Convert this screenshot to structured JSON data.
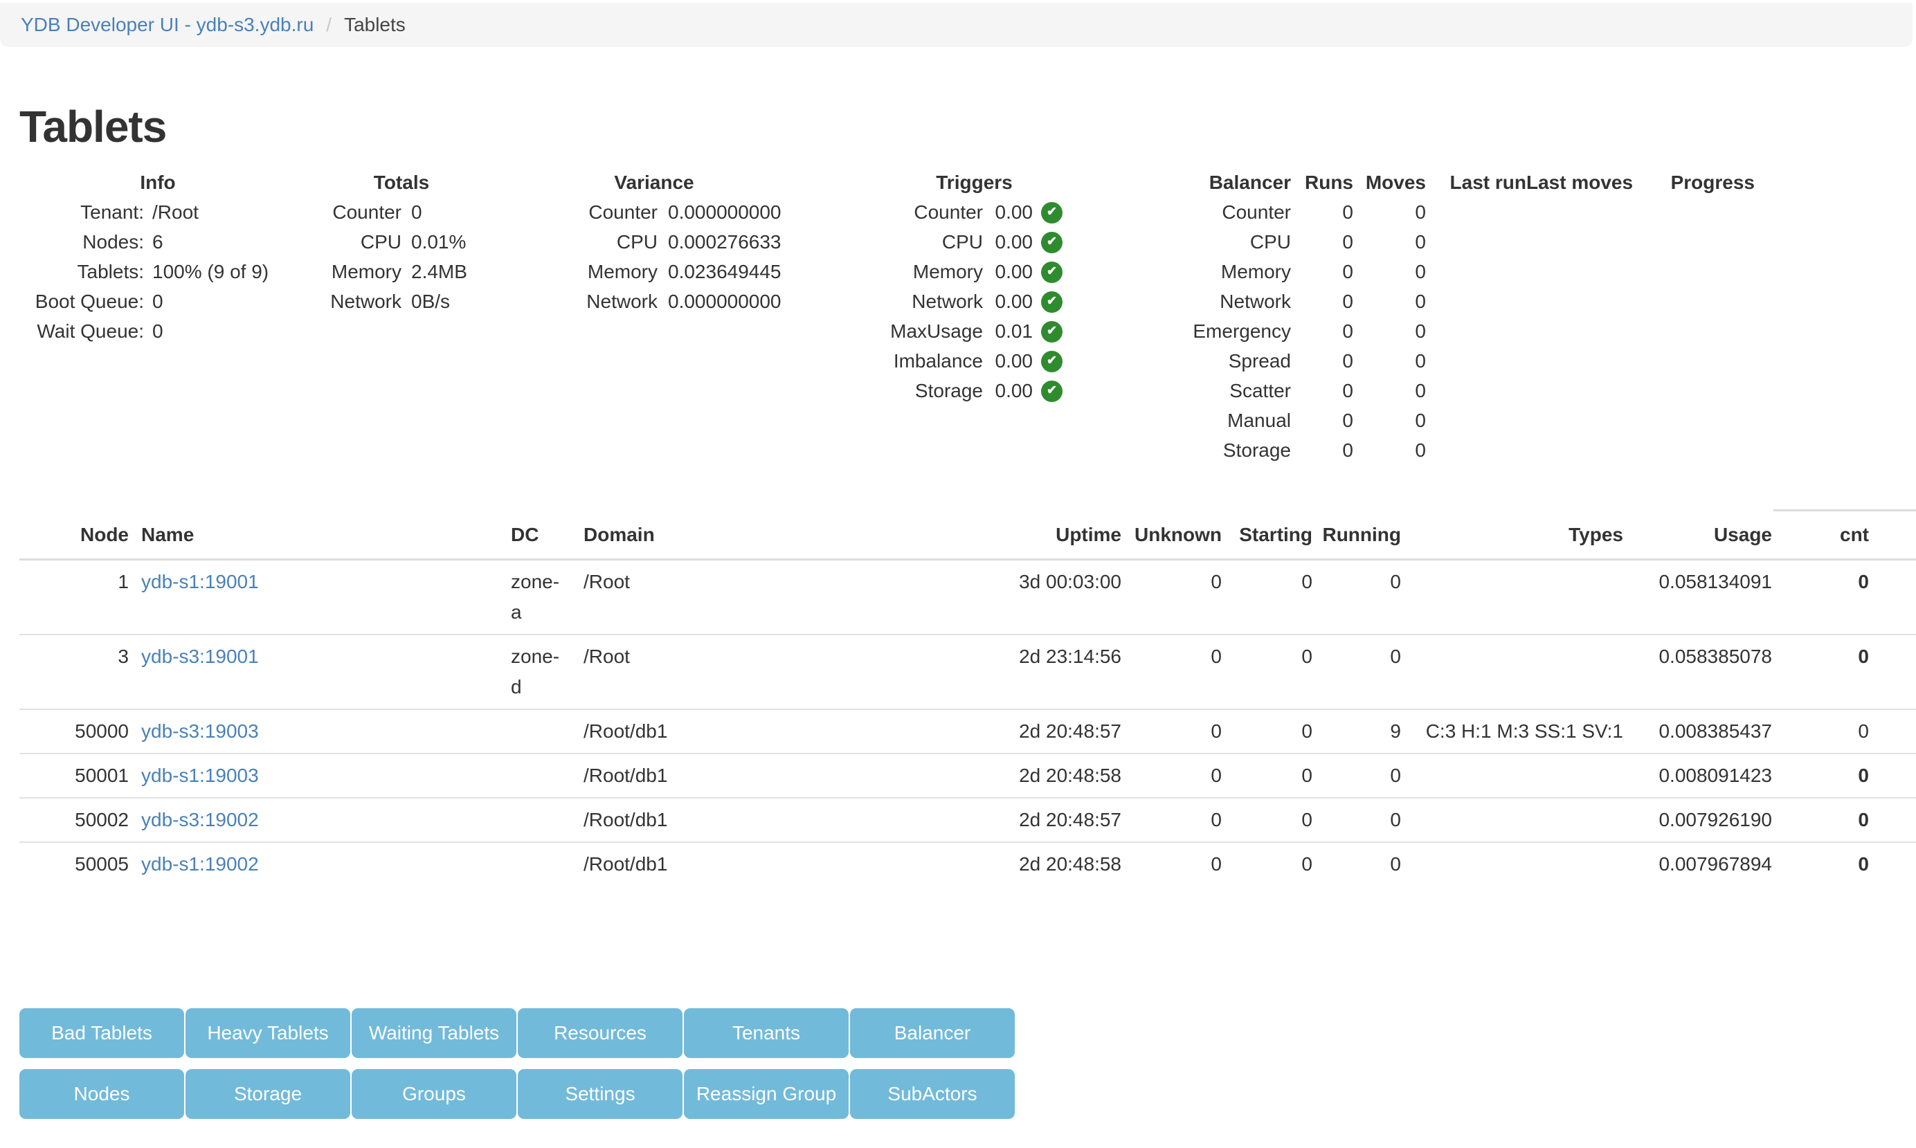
{
  "breadcrumb": {
    "root": "YDB Developer UI - ydb-s3.ydb.ru",
    "separator": "/",
    "current": "Tablets"
  },
  "page": {
    "title": "Tablets"
  },
  "summary": {
    "info": {
      "title": "Info",
      "rows": [
        {
          "label": "Tenant:",
          "value": "/Root"
        },
        {
          "label": "Nodes:",
          "value": "6"
        },
        {
          "label": "Tablets:",
          "value": "100% (9 of 9)"
        },
        {
          "label": "Boot Queue:",
          "value": "0"
        },
        {
          "label": "Wait Queue:",
          "value": "0"
        }
      ]
    },
    "totals": {
      "title": "Totals",
      "rows": [
        {
          "label": "Counter",
          "value": "0"
        },
        {
          "label": "CPU",
          "value": "0.01%"
        },
        {
          "label": "Memory",
          "value": "2.4MB"
        },
        {
          "label": "Network",
          "value": "0B/s"
        }
      ]
    },
    "variance": {
      "title": "Variance",
      "rows": [
        {
          "label": "Counter",
          "value": "0.000000000"
        },
        {
          "label": "CPU",
          "value": "0.000276633"
        },
        {
          "label": "Memory",
          "value": "0.023649445"
        },
        {
          "label": "Network",
          "value": "0.000000000"
        }
      ]
    },
    "triggers": {
      "title": "Triggers",
      "rows": [
        {
          "label": "Counter",
          "value": "0.00",
          "status": "ok"
        },
        {
          "label": "CPU",
          "value": "0.00",
          "status": "ok"
        },
        {
          "label": "Memory",
          "value": "0.00",
          "status": "ok"
        },
        {
          "label": "Network",
          "value": "0.00",
          "status": "ok"
        },
        {
          "label": "MaxUsage",
          "value": "0.01",
          "status": "ok"
        },
        {
          "label": "Imbalance",
          "value": "0.00",
          "status": "ok"
        },
        {
          "label": "Storage",
          "value": "0.00",
          "status": "ok"
        }
      ]
    },
    "balancer": {
      "headers": [
        "Balancer",
        "Runs",
        "Moves",
        "Last run",
        "Last moves",
        "Progress"
      ],
      "rows": [
        {
          "name": "Counter",
          "runs": "0",
          "moves": "0",
          "last_run": "",
          "last_moves": "",
          "progress": ""
        },
        {
          "name": "CPU",
          "runs": "0",
          "moves": "0",
          "last_run": "",
          "last_moves": "",
          "progress": ""
        },
        {
          "name": "Memory",
          "runs": "0",
          "moves": "0",
          "last_run": "",
          "last_moves": "",
          "progress": ""
        },
        {
          "name": "Network",
          "runs": "0",
          "moves": "0",
          "last_run": "",
          "last_moves": "",
          "progress": ""
        },
        {
          "name": "Emergency",
          "runs": "0",
          "moves": "0",
          "last_run": "",
          "last_moves": "",
          "progress": ""
        },
        {
          "name": "Spread",
          "runs": "0",
          "moves": "0",
          "last_run": "",
          "last_moves": "",
          "progress": ""
        },
        {
          "name": "Scatter",
          "runs": "0",
          "moves": "0",
          "last_run": "",
          "last_moves": "",
          "progress": ""
        },
        {
          "name": "Manual",
          "runs": "0",
          "moves": "0",
          "last_run": "",
          "last_moves": "",
          "progress": ""
        },
        {
          "name": "Storage",
          "runs": "0",
          "moves": "0",
          "last_run": "",
          "last_moves": "",
          "progress": ""
        }
      ]
    }
  },
  "table": {
    "headers": {
      "node": "Node",
      "name": "Name",
      "dc": "DC",
      "domain": "Domain",
      "uptime": "Uptime",
      "unknown": "Unknown",
      "starting": "Starting",
      "running": "Running",
      "types": "Types",
      "usage": "Usage",
      "cnt": "cnt"
    },
    "rows": [
      {
        "node": "1",
        "name": "ydb-s1:19001",
        "dc": "zone-a",
        "domain": "/Root",
        "uptime": "3d 00:03:00",
        "unknown": "0",
        "starting": "0",
        "running": "0",
        "types": "",
        "usage": "0.058134091",
        "cnt": "0",
        "cnt_bold": true
      },
      {
        "node": "3",
        "name": "ydb-s3:19001",
        "dc": "zone-d",
        "domain": "/Root",
        "uptime": "2d 23:14:56",
        "unknown": "0",
        "starting": "0",
        "running": "0",
        "types": "",
        "usage": "0.058385078",
        "cnt": "0",
        "cnt_bold": true
      },
      {
        "node": "50000",
        "name": "ydb-s3:19003",
        "dc": "",
        "domain": "/Root/db1",
        "uptime": "2d 20:48:57",
        "unknown": "0",
        "starting": "0",
        "running": "9",
        "types": "C:3 H:1 M:3 SS:1 SV:1",
        "usage": "0.008385437",
        "cnt": "0",
        "cnt_bold": false
      },
      {
        "node": "50001",
        "name": "ydb-s1:19003",
        "dc": "",
        "domain": "/Root/db1",
        "uptime": "2d 20:48:58",
        "unknown": "0",
        "starting": "0",
        "running": "0",
        "types": "",
        "usage": "0.008091423",
        "cnt": "0",
        "cnt_bold": true
      },
      {
        "node": "50002",
        "name": "ydb-s3:19002",
        "dc": "",
        "domain": "/Root/db1",
        "uptime": "2d 20:48:57",
        "unknown": "0",
        "starting": "0",
        "running": "0",
        "types": "",
        "usage": "0.007926190",
        "cnt": "0",
        "cnt_bold": true
      },
      {
        "node": "50005",
        "name": "ydb-s1:19002",
        "dc": "",
        "domain": "/Root/db1",
        "uptime": "2d 20:48:58",
        "unknown": "0",
        "starting": "0",
        "running": "0",
        "types": "",
        "usage": "0.007967894",
        "cnt": "0",
        "cnt_bold": true
      }
    ]
  },
  "buttons": {
    "row1": [
      "Bad Tablets",
      "Heavy Tablets",
      "Waiting Tablets",
      "Resources",
      "Tenants",
      "Balancer"
    ],
    "row2": [
      "Nodes",
      "Storage",
      "Groups",
      "Settings",
      "Reassign Group",
      "SubActors"
    ]
  },
  "colors": {
    "button_blue": "#72BAD9",
    "link_blue": "#4A81B8",
    "check_green": "#2E8B2E",
    "breadcrumb_bg": "#F5F5F5",
    "table_border": "#DDDDDD",
    "text": "#333333"
  }
}
